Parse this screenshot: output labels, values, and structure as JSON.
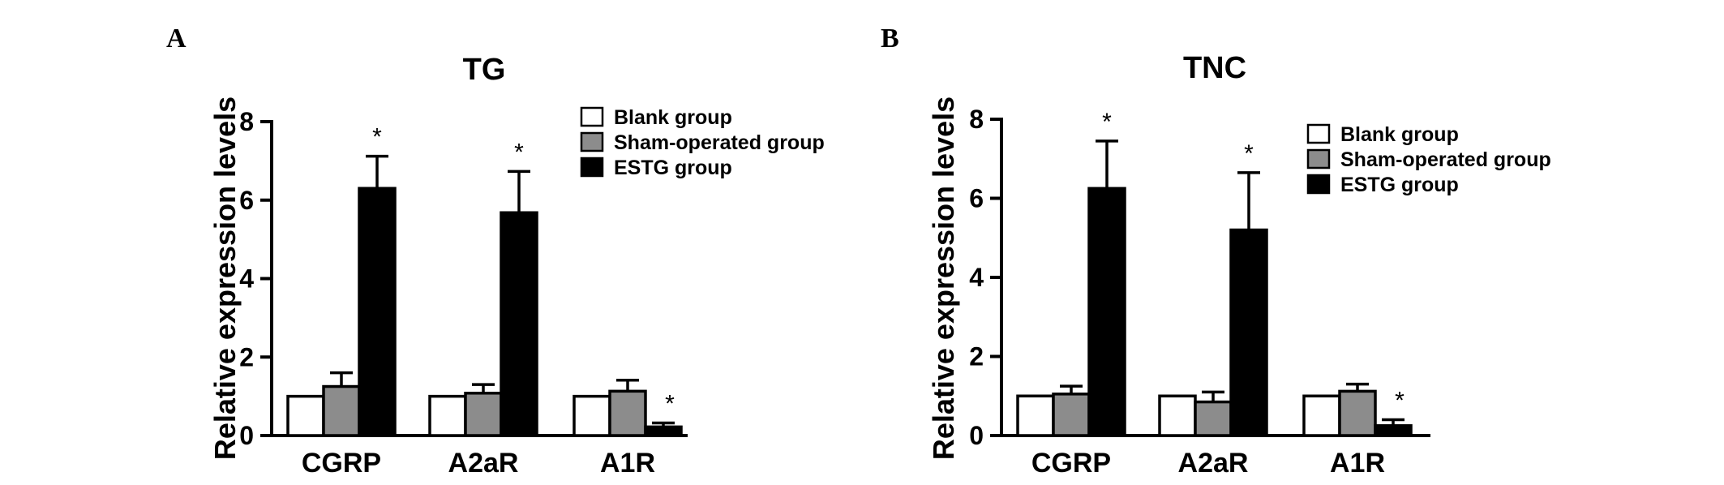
{
  "chart_data": [
    {
      "type": "bar",
      "panel": "A",
      "title": "TG",
      "ylabel": "Relative expression levels",
      "xlabel": "",
      "ylim": [
        0,
        8
      ],
      "yticks": [
        "0",
        "2",
        "4",
        "6",
        "8"
      ],
      "categories": [
        "CGRP",
        "A2aR",
        "A1R"
      ],
      "series": [
        {
          "name": "Blank group",
          "color": "#ffffff",
          "values": [
            1.0,
            1.0,
            1.0
          ],
          "errors": [
            0,
            0,
            0
          ]
        },
        {
          "name": "Sham-operated group",
          "color": "#8c8c8c",
          "values": [
            1.25,
            1.08,
            1.13
          ],
          "errors": [
            0.35,
            0.22,
            0.28
          ]
        },
        {
          "name": "ESTG group",
          "color": "#000000",
          "values": [
            6.3,
            5.68,
            0.22
          ],
          "errors": [
            0.82,
            1.05,
            0.1
          ]
        }
      ],
      "annotations": [
        "*",
        "*",
        "*"
      ],
      "legend_position": "top-right"
    },
    {
      "type": "bar",
      "panel": "B",
      "title": "TNC",
      "ylabel": "Relative expression levels",
      "xlabel": "",
      "ylim": [
        0,
        8
      ],
      "yticks": [
        "0",
        "2",
        "4",
        "6",
        "8"
      ],
      "categories": [
        "CGRP",
        "A2aR",
        "A1R"
      ],
      "series": [
        {
          "name": "Blank group",
          "color": "#ffffff",
          "values": [
            1.0,
            1.0,
            1.0
          ],
          "errors": [
            0,
            0,
            0
          ]
        },
        {
          "name": "Sham-operated group",
          "color": "#8c8c8c",
          "values": [
            1.05,
            0.85,
            1.12
          ],
          "errors": [
            0.2,
            0.25,
            0.18
          ]
        },
        {
          "name": "ESTG group",
          "color": "#000000",
          "values": [
            6.25,
            5.2,
            0.25
          ],
          "errors": [
            1.2,
            1.45,
            0.15
          ]
        }
      ],
      "annotations": [
        "*",
        "*",
        "*"
      ],
      "legend_position": "top-right"
    }
  ]
}
